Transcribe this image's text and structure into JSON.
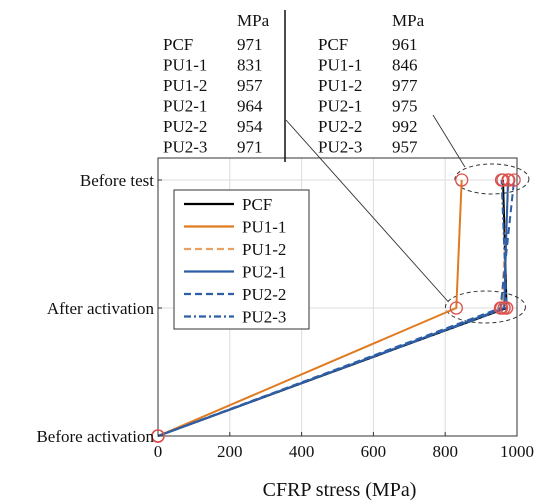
{
  "chart_data": {
    "type": "line",
    "title": "",
    "xlabel": "CFRP stress (MPa)",
    "ylabel": "",
    "xlim": [
      0,
      1000
    ],
    "x_ticks": [
      0,
      200,
      400,
      600,
      800,
      1000
    ],
    "x_tick_labels": [
      "0",
      "200",
      "400",
      "600",
      "800",
      "1000"
    ],
    "categories": [
      "Before activation",
      "After activation",
      "Before test"
    ],
    "grid": true,
    "legend_position": "upper-middle, inside plot",
    "series": [
      {
        "name": "PCF",
        "color": "#000000",
        "dash": "solid",
        "x": [
          0,
          971,
          961
        ]
      },
      {
        "name": "PU1-1",
        "color": "#e07b22",
        "dash": "solid",
        "x": [
          0,
          831,
          846
        ]
      },
      {
        "name": "PU1-2",
        "color": "#e9a060",
        "dash": "dashed",
        "x": [
          0,
          957,
          977
        ]
      },
      {
        "name": "PU2-1",
        "color": "#2e5ea5",
        "dash": "solid",
        "x": [
          0,
          964,
          975
        ]
      },
      {
        "name": "PU2-2",
        "color": "#2e5ea5",
        "dash": "dashed",
        "x": [
          0,
          954,
          992
        ]
      },
      {
        "name": "PU2-3",
        "color": "#2e5ea5",
        "dash": "dashdot",
        "x": [
          0,
          971,
          957
        ]
      }
    ],
    "annotation_tables": [
      {
        "header": "MPa",
        "anchor": "After activation",
        "rows": [
          {
            "name": "PCF",
            "value": "971"
          },
          {
            "name": "PU1-1",
            "value": "831"
          },
          {
            "name": "PU1-2",
            "value": "957"
          },
          {
            "name": "PU2-1",
            "value": "964"
          },
          {
            "name": "PU2-2",
            "value": "954"
          },
          {
            "name": "PU2-3",
            "value": "971"
          }
        ]
      },
      {
        "header": "MPa",
        "anchor": "Before test",
        "rows": [
          {
            "name": "PCF",
            "value": "961"
          },
          {
            "name": "PU1-1",
            "value": "846"
          },
          {
            "name": "PU1-2",
            "value": "977"
          },
          {
            "name": "PU2-1",
            "value": "975"
          },
          {
            "name": "PU2-2",
            "value": "992"
          },
          {
            "name": "PU2-3",
            "value": "957"
          }
        ]
      }
    ]
  }
}
